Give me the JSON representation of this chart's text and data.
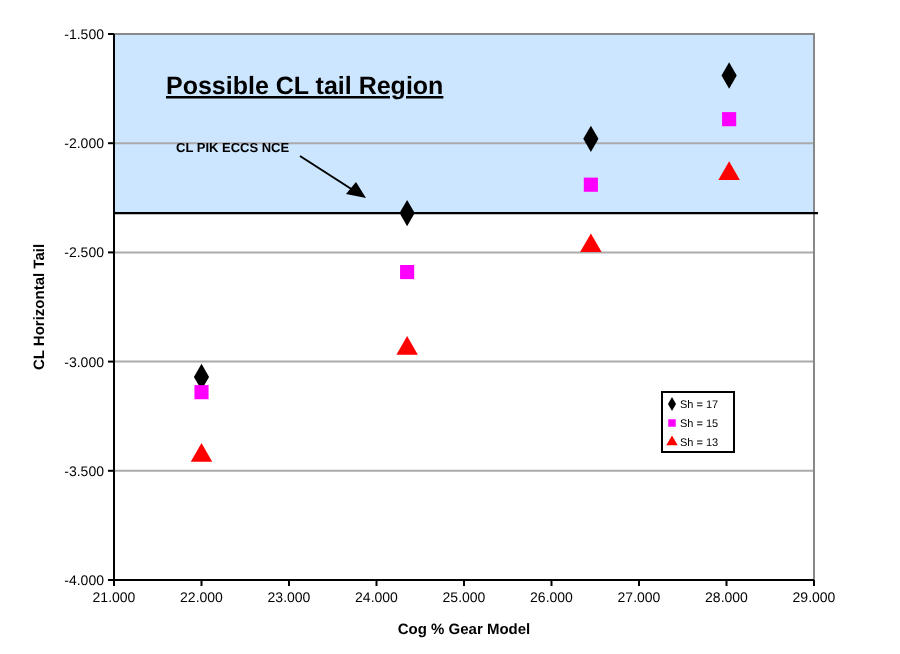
{
  "chart_data": {
    "type": "scatter",
    "xlabel": "Cog % Gear Model",
    "ylabel": "CL Horizontal Tail",
    "x": [
      22000,
      24350,
      26450,
      28030
    ],
    "series": [
      {
        "name": "Sh = 17",
        "color": "#000000",
        "marker": "diamond",
        "values": [
          -3.07,
          -2.32,
          -1.98,
          -1.69
        ]
      },
      {
        "name": "Sh = 15",
        "color": "#ff00ff",
        "marker": "square",
        "values": [
          -3.14,
          -2.59,
          -2.19,
          -1.89
        ]
      },
      {
        "name": "Sh = 13",
        "color": "#ff0000",
        "marker": "triangle",
        "values": [
          -3.43,
          -2.94,
          -2.47,
          -2.14
        ]
      }
    ],
    "xlim": [
      21000,
      29000
    ],
    "xticks": [
      {
        "value": 21000,
        "label": "21.000"
      },
      {
        "value": 22000,
        "label": "22.000"
      },
      {
        "value": 23000,
        "label": "23.000"
      },
      {
        "value": 24000,
        "label": "24.000"
      },
      {
        "value": 25000,
        "label": "25.000"
      },
      {
        "value": 26000,
        "label": "26.000"
      },
      {
        "value": 27000,
        "label": "27.000"
      },
      {
        "value": 28000,
        "label": "28.000"
      },
      {
        "value": 29000,
        "label": "29.000"
      }
    ],
    "ylim": [
      -4,
      -1.5
    ],
    "yticks": [
      {
        "value": -4,
        "label": "-4.000"
      },
      {
        "value": -3.5,
        "label": "-3.500"
      },
      {
        "value": -3,
        "label": "-3.000"
      },
      {
        "value": -2.5,
        "label": "-2.500"
      },
      {
        "value": -2,
        "label": "-2.000"
      },
      {
        "value": -1.5,
        "label": "-1.500"
      }
    ],
    "grid": "y",
    "bands": [
      {
        "axis": "y",
        "from": -2.32,
        "to": -1.5,
        "label": "Possible CL tail Region",
        "color": "#cce6ff"
      }
    ],
    "ref_lines": [
      {
        "axis": "y",
        "value": -2.32,
        "color": "#000000"
      }
    ],
    "annotations": [
      "CL PIK ECCS NCE"
    ],
    "legend": "right"
  }
}
